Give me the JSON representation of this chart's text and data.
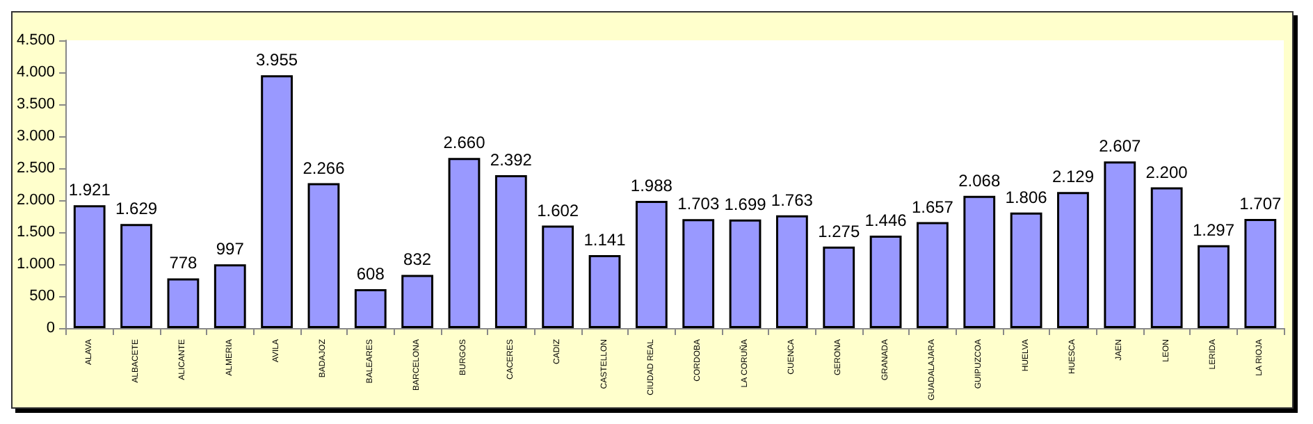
{
  "chart_data": {
    "type": "bar",
    "categories": [
      "ALAVA",
      "ALBACETE",
      "ALICANTE",
      "ALMERIA",
      "AVILA",
      "BADAJOZ",
      "BALEARES",
      "BARCELONA",
      "BURGOS",
      "CACERES",
      "CADIZ",
      "CASTELLON",
      "CIUDAD REAL",
      "CORDOBA",
      "LA CORUÑA",
      "CUENCA",
      "GERONA",
      "GRANADA",
      "GUADALAJARA",
      "GUIPUZCOA",
      "HUELVA",
      "HUESCA",
      "JAEN",
      "LEON",
      "LERIDA",
      "LA RIOJA"
    ],
    "values": [
      1921,
      1629,
      778,
      997,
      3955,
      2266,
      608,
      832,
      2660,
      2392,
      1602,
      1141,
      1988,
      1703,
      1699,
      1763,
      1275,
      1446,
      1657,
      2068,
      1806,
      2129,
      2607,
      2200,
      1297,
      1707
    ],
    "value_labels": [
      "1.921",
      "1.629",
      "778",
      "997",
      "3.955",
      "2.266",
      "608",
      "832",
      "2.660",
      "2.392",
      "1.602",
      "1.141",
      "1.988",
      "1.703",
      "1.699",
      "1.763",
      "1.275",
      "1.446",
      "1.657",
      "2.068",
      "1.806",
      "2.129",
      "2.607",
      "2.200",
      "1.297",
      "1.707"
    ],
    "color": "#9999ff",
    "ylim": [
      0,
      4500
    ],
    "yticks": [
      0,
      500,
      {
        "value": 1000,
        "label": "1.000"
      },
      {
        "value": 1500,
        "label": "1.500"
      },
      {
        "value": 2000,
        "label": "2.000"
      },
      {
        "value": 2500,
        "label": "2.500"
      },
      {
        "value": 3000,
        "label": "3.000"
      },
      {
        "value": 3500,
        "label": "3.500"
      },
      {
        "value": 4000,
        "label": "4.000"
      },
      {
        "value": 4500,
        "label": "4.500"
      }
    ],
    "grid": false
  }
}
